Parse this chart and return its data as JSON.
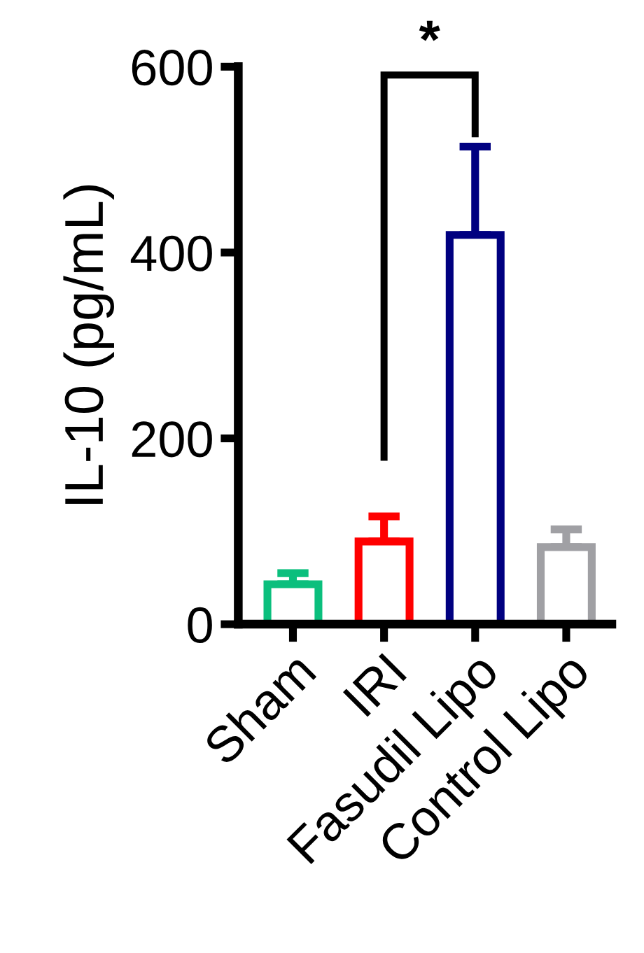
{
  "chart_data": {
    "type": "bar",
    "ylabel": "IL-10 (pg/mL)",
    "categories": [
      "Sham",
      "IRI",
      "Fasudil Lipo",
      "Control Lipo"
    ],
    "values": [
      43,
      89,
      419,
      83
    ],
    "errors": [
      [
        43,
        55
      ],
      [
        89,
        116
      ],
      [
        419,
        514
      ],
      [
        83,
        102
      ]
    ],
    "colors": [
      "#0bbf7d",
      "#ff0000",
      "#000080",
      "#a0a0a4"
    ],
    "ylim": [
      0,
      600
    ],
    "yticks": [
      0,
      200,
      400,
      600
    ],
    "annotations": [
      "*"
    ],
    "grid": false
  }
}
